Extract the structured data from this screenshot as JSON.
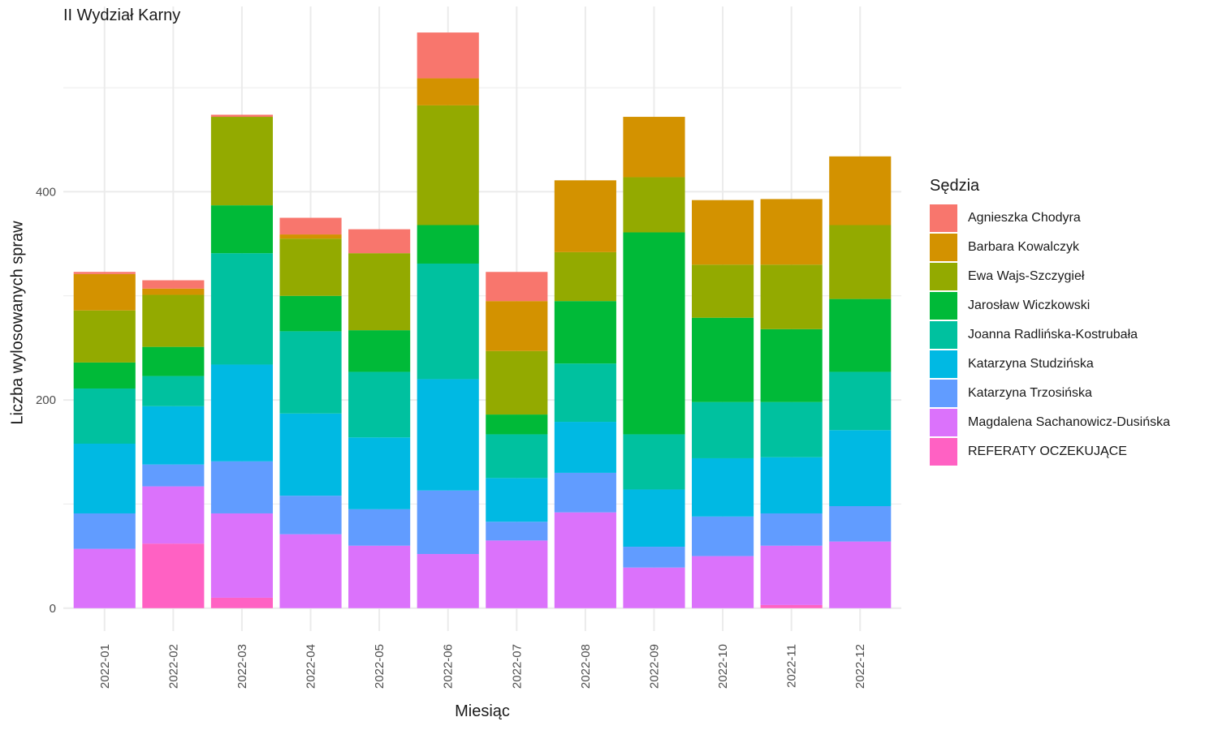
{
  "chart_data": {
    "type": "bar",
    "stacked": true,
    "title": "II Wydział Karny",
    "xlabel": "Miesiąc",
    "ylabel": "Liczba wylosowanych spraw",
    "ylim": [
      -22,
      578
    ],
    "yticks": [
      0,
      200,
      400
    ],
    "grid": true,
    "legend_title": "Sędzia",
    "legend_position": "right",
    "categories": [
      "2022-01",
      "2022-02",
      "2022-03",
      "2022-04",
      "2022-05",
      "2022-06",
      "2022-07",
      "2022-08",
      "2022-09",
      "2022-10",
      "2022-11",
      "2022-12"
    ],
    "series": [
      {
        "name": "REFERATY OCZEKUJĄCE",
        "color": "#FF61C3",
        "values": [
          0,
          62,
          10,
          0,
          0,
          0,
          0,
          0,
          0,
          0,
          3,
          0
        ]
      },
      {
        "name": "Magdalena Sachanowicz-Dusińska",
        "color": "#DB72FB",
        "values": [
          57,
          55,
          81,
          71,
          60,
          52,
          65,
          92,
          39,
          50,
          57,
          64
        ]
      },
      {
        "name": "Katarzyna Trzosińska",
        "color": "#619CFF",
        "values": [
          34,
          21,
          50,
          37,
          35,
          61,
          18,
          38,
          20,
          38,
          31,
          34
        ]
      },
      {
        "name": "Katarzyna Studzińska",
        "color": "#00B9E3",
        "values": [
          67,
          56,
          93,
          79,
          69,
          107,
          42,
          49,
          55,
          56,
          54,
          73
        ]
      },
      {
        "name": "Joanna Radlińska-Kostrubała",
        "color": "#00C19F",
        "values": [
          53,
          29,
          107,
          79,
          63,
          111,
          42,
          56,
          53,
          54,
          53,
          56
        ]
      },
      {
        "name": "Jarosław Wiczkowski",
        "color": "#00BA38",
        "values": [
          25,
          28,
          46,
          34,
          40,
          37,
          19,
          60,
          194,
          81,
          70,
          70
        ]
      },
      {
        "name": "Ewa Wajs-Szczygieł",
        "color": "#93AA00",
        "values": [
          50,
          50,
          85,
          55,
          74,
          115,
          61,
          47,
          53,
          51,
          62,
          71
        ]
      },
      {
        "name": "Barbara Kowalczyk",
        "color": "#D39200",
        "values": [
          35,
          6,
          0,
          4,
          0,
          26,
          48,
          69,
          58,
          62,
          63,
          66
        ]
      },
      {
        "name": "Agnieszka Chodyra",
        "color": "#F8766D",
        "values": [
          2,
          8,
          2,
          16,
          23,
          44,
          28,
          0,
          0,
          0,
          0,
          0
        ]
      }
    ],
    "legend_order": [
      "Agnieszka Chodyra",
      "Barbara Kowalczyk",
      "Ewa Wajs-Szczygieł",
      "Jarosław Wiczkowski",
      "Joanna Radlińska-Kostrubała",
      "Katarzyna Studzińska",
      "Katarzyna Trzosińska",
      "Magdalena Sachanowicz-Dusińska",
      "REFERATY OCZEKUJĄCE"
    ]
  }
}
